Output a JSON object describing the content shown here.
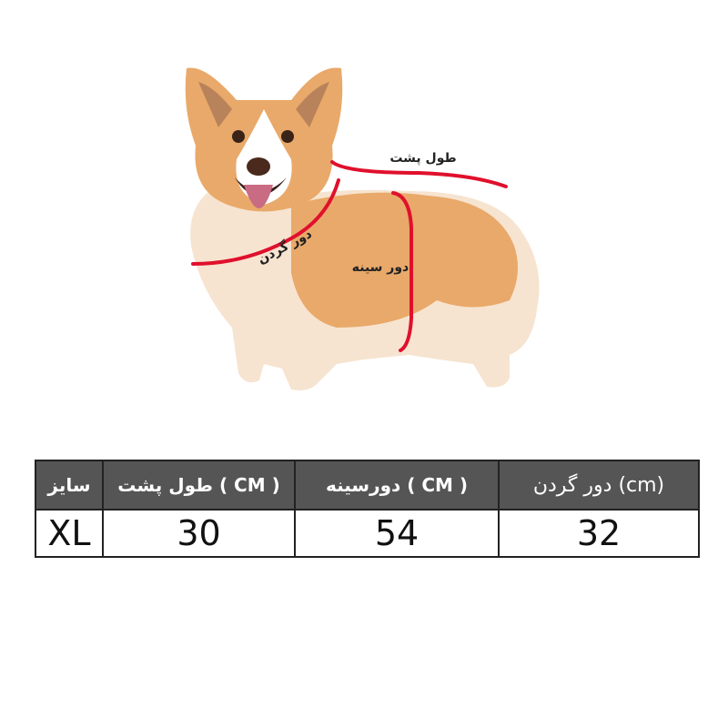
{
  "illustration": {
    "subject": "corgi-dog",
    "labels": {
      "back_length": "طول پشت",
      "neck": "دور گردن",
      "chest": "دور سینه"
    },
    "measure_color": "#e0102c"
  },
  "size_table": {
    "headers": [
      "سایز",
      "طول پشت ( CM )",
      "دورسینه ( CM )",
      "دور گردن (cm)"
    ],
    "row": [
      "XL",
      "30",
      "54",
      "32"
    ]
  }
}
